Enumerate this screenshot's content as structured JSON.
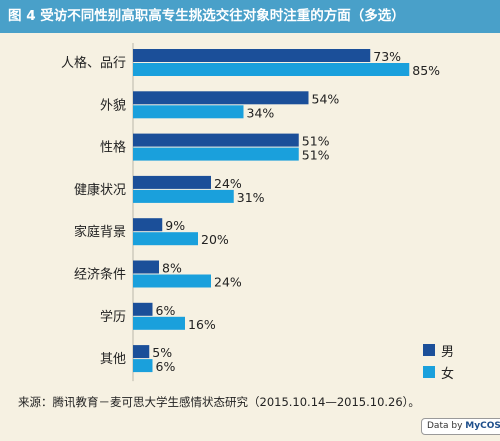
{
  "figure": {
    "title": "图 4  受访不同性别高职高专生挑选交往对象时注重的方面（多选）",
    "source": "来源：腾讯教育－麦可思大学生感情状态研究（2015.10.14—2015.10.26）。",
    "badge_prefix": "Data by",
    "badge_brand": "MyCOS"
  },
  "colors": {
    "title_bar": "#49a0c9",
    "background": "#f6f1e2",
    "male": "#1b4f99",
    "female": "#1aa0dc"
  },
  "chart_data": {
    "type": "bar",
    "orientation": "horizontal",
    "categories": [
      "人格、品行",
      "外貌",
      "性格",
      "健康状况",
      "家庭背景",
      "经济条件",
      "学历",
      "其他"
    ],
    "series": [
      {
        "name": "男",
        "values": [
          73,
          54,
          51,
          24,
          9,
          8,
          6,
          5
        ],
        "labels": [
          "73%",
          "54%",
          "51%",
          "24%",
          "9%",
          "8%",
          "6%",
          "5%"
        ]
      },
      {
        "name": "女",
        "values": [
          85,
          34,
          51,
          31,
          20,
          24,
          16,
          6
        ],
        "labels": [
          "85%",
          "34%",
          "51%",
          "31%",
          "20%",
          "24%",
          "16%",
          "6%"
        ]
      }
    ],
    "unit": "%",
    "xlim": [
      0,
      100
    ],
    "legend_position": "bottom-right",
    "grid": false
  }
}
